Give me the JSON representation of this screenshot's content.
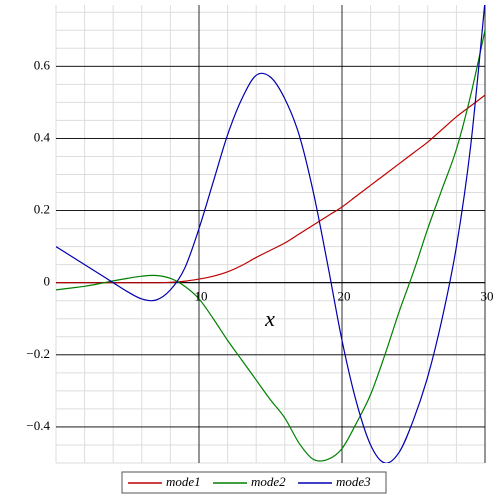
{
  "chart_data": {
    "type": "line",
    "x_label": "x",
    "x": [
      0,
      1,
      2,
      3,
      4,
      5,
      6,
      7,
      8,
      9,
      10,
      11,
      12,
      13,
      14,
      15,
      16,
      17,
      18,
      19,
      20,
      21,
      22,
      23,
      24,
      25,
      26,
      27,
      28,
      29,
      30
    ],
    "series": [
      {
        "name": "mode1",
        "color": "#c00000",
        "values": [
          0,
          0,
          0,
          0,
          0,
          0,
          0,
          0,
          0.001,
          0.004,
          0.01,
          0.018,
          0.03,
          0.048,
          0.07,
          0.09,
          0.11,
          0.135,
          0.16,
          0.185,
          0.21,
          0.24,
          0.27,
          0.3,
          0.33,
          0.36,
          0.39,
          0.425,
          0.46,
          0.49,
          0.52
        ]
      },
      {
        "name": "mode2",
        "color": "#008000",
        "values": [
          -0.02,
          -0.015,
          -0.01,
          -0.003,
          0.005,
          0.012,
          0.018,
          0.02,
          0.012,
          -0.01,
          -0.045,
          -0.1,
          -0.16,
          -0.215,
          -0.27,
          -0.325,
          -0.375,
          -0.445,
          -0.49,
          -0.49,
          -0.46,
          -0.39,
          -0.31,
          -0.2,
          -0.08,
          0.03,
          0.15,
          0.26,
          0.37,
          0.52,
          0.7
        ]
      },
      {
        "name": "mode3",
        "color": "#0000b0",
        "values": [
          0.1,
          0.075,
          0.05,
          0.025,
          0,
          -0.025,
          -0.045,
          -0.048,
          -0.02,
          0.04,
          0.15,
          0.28,
          0.41,
          0.51,
          0.575,
          0.57,
          0.51,
          0.41,
          0.25,
          0.05,
          -0.16,
          -0.33,
          -0.45,
          -0.5,
          -0.47,
          -0.38,
          -0.26,
          -0.1,
          0.1,
          0.38,
          0.78
        ]
      }
    ],
    "xlim": [
      0,
      30
    ],
    "xticks": [
      10,
      20,
      30
    ],
    "ylim": [
      -0.5,
      0.77
    ],
    "yticks": [
      {
        "value": -0.4,
        "label": "−0.4"
      },
      {
        "value": -0.2,
        "label": "−0.2"
      },
      0,
      0.2,
      0.4,
      0.6
    ],
    "grid": true,
    "legend": "bottom"
  }
}
